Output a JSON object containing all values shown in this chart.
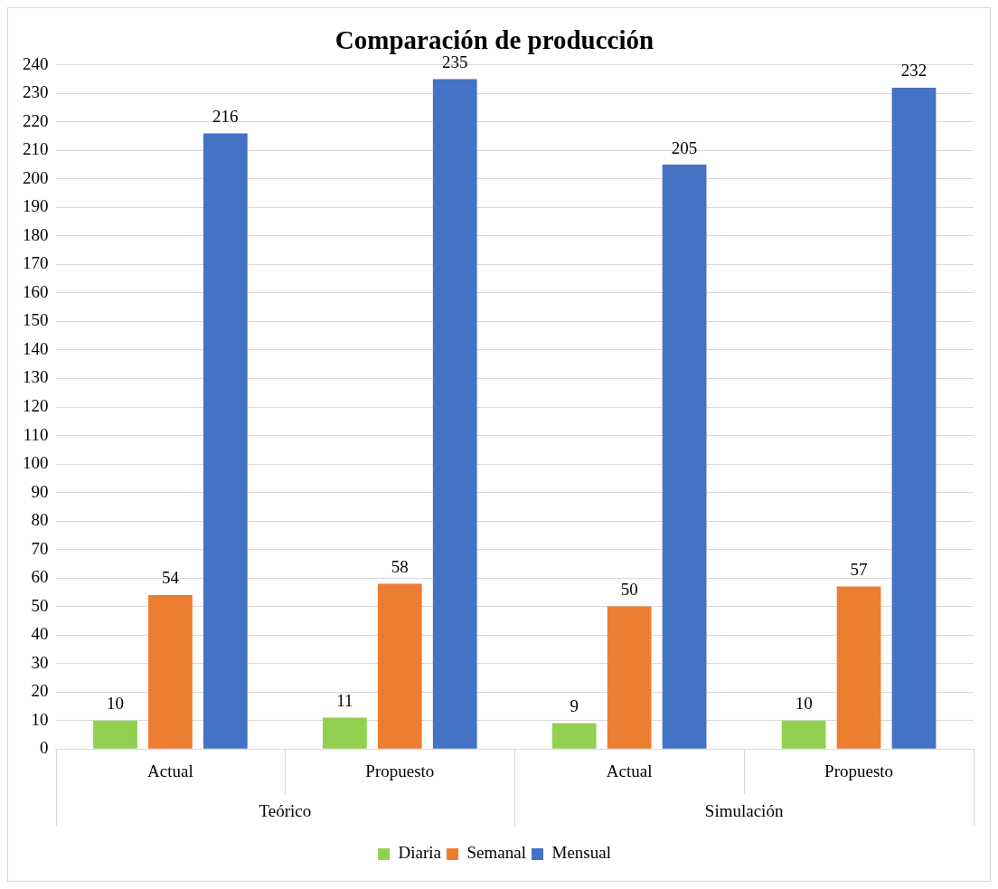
{
  "chart_data": {
    "type": "bar",
    "title": "Comparación de producción",
    "categories": [
      "Actual",
      "Propuesto",
      "Actual",
      "Propuesto"
    ],
    "series": [
      {
        "name": "Diaria",
        "color": "#92d050",
        "values": [
          10,
          11,
          9,
          10
        ]
      },
      {
        "name": "Semanal",
        "color": "#ed7d31",
        "values": [
          54,
          58,
          50,
          57
        ]
      },
      {
        "name": "Mensual",
        "color": "#4472c4",
        "values": [
          216,
          235,
          205,
          232
        ]
      }
    ],
    "annotations": [
      "Teórico",
      "Simulación"
    ],
    "ylim": [
      0,
      240
    ],
    "yticks": [
      0,
      10,
      20,
      30,
      40,
      50,
      60,
      70,
      80,
      90,
      100,
      110,
      120,
      130,
      140,
      150,
      160,
      170,
      180,
      190,
      200,
      210,
      220,
      230,
      240
    ],
    "grid": "y",
    "legend": "bottom",
    "data_labels": true
  }
}
